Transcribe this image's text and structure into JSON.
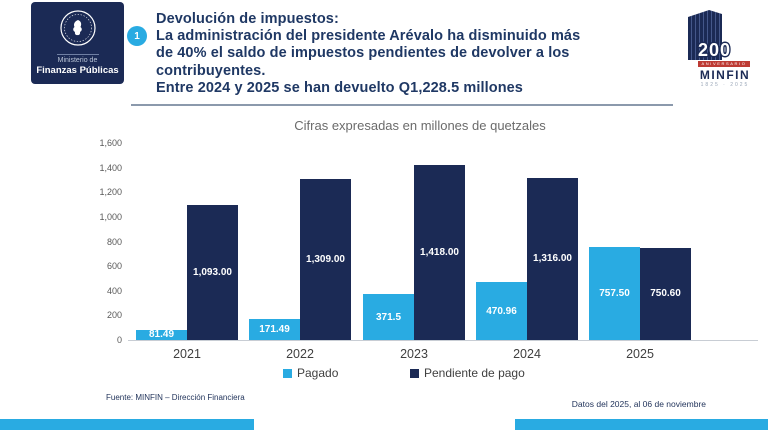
{
  "header": {
    "badge": "1",
    "logo": {
      "line1": "Ministerio de",
      "line2": "Finanzas Públicas"
    },
    "title_lines": [
      "Devolución de impuestos:",
      "La administración del presidente Arévalo ha disminuido más",
      "de 40%  el saldo de impuestos pendientes de devolver a los",
      "contribuyentes.",
      "Entre 2024 y 2025 se han devuelto Q1,228.5 millones"
    ],
    "anniversary_logo": {
      "number": "200",
      "band": "ANIVERSARIO",
      "name": "MINFIN",
      "years": "1825 · 2025"
    }
  },
  "chart_data": {
    "type": "bar",
    "title": "Cifras expresadas en millones de quetzales",
    "categories": [
      "2021",
      "2022",
      "2023",
      "2024",
      "2025"
    ],
    "series": [
      {
        "name": "Pagado",
        "color": "#29abe2",
        "values": [
          81.49,
          171.49,
          371.5,
          470.96,
          757.5
        ],
        "labels": [
          "81.49",
          "171.49",
          "371.5",
          "470.96",
          "757.50"
        ]
      },
      {
        "name": "Pendiente de pago",
        "color": "#1b2a55",
        "values": [
          1093,
          1309,
          1418,
          1316,
          750.6
        ],
        "labels": [
          "1,093.00",
          "1,309.00",
          "1,418.00",
          "1,316.00",
          "750.60"
        ]
      }
    ],
    "ylim": [
      0,
      1600
    ],
    "ytick_step": 200,
    "ytick_labels": [
      "0",
      "200",
      "400",
      "600",
      "800",
      "1,000",
      "1,200",
      "1,400",
      "1,600"
    ],
    "grid": false,
    "legend_position": "bottom",
    "xlabel": "",
    "ylabel": ""
  },
  "footer": {
    "source": "Fuente: MINFIN – Dirección Financiera",
    "note": "Datos del 2025,  al  06 de noviembre"
  },
  "colors": {
    "paid": "#29abe2",
    "pending": "#1b2a55",
    "title_text": "#1f3864",
    "accent_strip": "#29abe2"
  }
}
